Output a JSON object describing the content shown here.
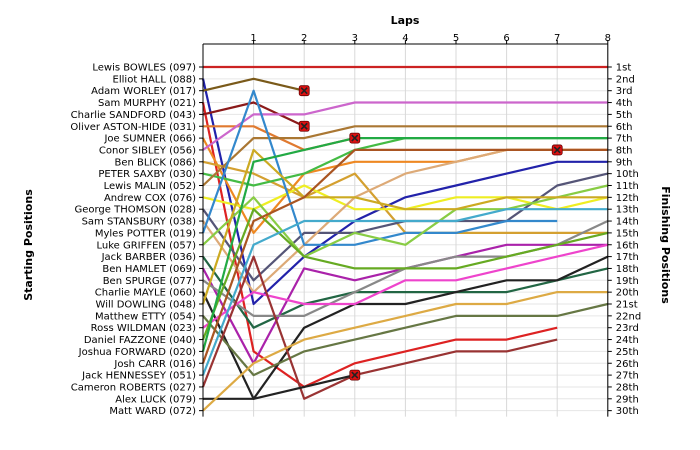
{
  "chart_data": {
    "type": "line",
    "xlabel": "Laps",
    "ylabel_left": "Starting Positions",
    "ylabel_right": "Finishing Positions",
    "x_ticks": [
      1,
      2,
      3,
      4,
      5,
      6,
      7,
      8
    ],
    "y_range": [
      1,
      30
    ],
    "finishing_labels": [
      "1st",
      "2nd",
      "3rd",
      "4th",
      "5th",
      "6th",
      "7th",
      "8th",
      "9th",
      "10th",
      "11th",
      "12th",
      "13th",
      "14th",
      "15th",
      "16th",
      "17th",
      "18th",
      "19th",
      "20th",
      "21st",
      "22nd",
      "23rd",
      "24th",
      "25th",
      "26th",
      "27th",
      "28th",
      "29th",
      "30th"
    ],
    "grid": true,
    "series": [
      {
        "name": "Lewis BOWLES (097)",
        "color": "#cc2222",
        "positions": [
          1,
          1,
          1,
          1,
          1,
          1,
          1,
          1,
          1
        ],
        "retired": false
      },
      {
        "name": "Elliot HALL (088)",
        "color": "#2222aa",
        "positions": [
          2,
          21,
          17,
          14,
          12,
          11,
          10,
          9,
          9
        ],
        "retired": false
      },
      {
        "name": "Adam WORLEY (017)",
        "color": "#7a5a1a",
        "positions": [
          3,
          2,
          3
        ],
        "retired": true
      },
      {
        "name": "Sam MURPHY (021)",
        "color": "#dd2222",
        "positions": [
          4,
          25,
          28,
          26,
          25,
          24,
          24,
          23
        ],
        "retired": false
      },
      {
        "name": "Charlie SANDFORD (043)",
        "color": "#8b1a1a",
        "positions": [
          5,
          4,
          6
        ],
        "retired": true
      },
      {
        "name": "Oliver ASTON-HIDE (031)",
        "color": "#e07a30",
        "positions": [
          6,
          6,
          8,
          7
        ],
        "retired": true
      },
      {
        "name": "Joe SUMNER (066)",
        "color": "#ee8822",
        "positions": [
          7,
          15,
          10,
          9,
          9,
          9,
          8,
          8,
          8
        ],
        "retired": false
      },
      {
        "name": "Conor SIBLEY (056)",
        "color": "#cc66cc",
        "positions": [
          8,
          5,
          5,
          4,
          4,
          4,
          4,
          4,
          4
        ],
        "retired": false
      },
      {
        "name": "Ben BLICK (086)",
        "color": "#d4a030",
        "positions": [
          9,
          10,
          12,
          10,
          15,
          15,
          15,
          15,
          15
        ],
        "retired": false
      },
      {
        "name": "PETER SAXBY (030)",
        "color": "#44bb44",
        "positions": [
          10,
          11,
          10,
          8,
          7,
          7,
          7,
          7,
          7
        ],
        "retired": false
      },
      {
        "name": "Lewis MALIN (052)",
        "color": "#aa7733",
        "positions": [
          11,
          7,
          7,
          6,
          6,
          6,
          6,
          6,
          6
        ],
        "retired": false
      },
      {
        "name": "Andrew COX (076)",
        "color": "#eeee22",
        "positions": [
          12,
          13,
          11,
          13,
          13,
          12,
          12,
          13,
          12
        ],
        "retired": false
      },
      {
        "name": "George THOMSON (028)",
        "color": "#555577",
        "positions": [
          13,
          19,
          15,
          15,
          14,
          14,
          14,
          11,
          10
        ],
        "retired": false
      },
      {
        "name": "Sam STANSBURY (038)",
        "color": "#ddaa77",
        "positions": [
          14,
          20,
          16,
          12,
          10,
          9,
          8,
          8
        ],
        "retired": true
      },
      {
        "name": "Myles POTTER (019)",
        "color": "#3388cc",
        "positions": [
          15,
          3,
          16,
          16,
          15,
          15,
          14,
          14
        ],
        "retired": false
      },
      {
        "name": "Luke GRIFFEN (057)",
        "color": "#88cc44",
        "positions": [
          16,
          12,
          17,
          15,
          16,
          13,
          13,
          12,
          11
        ],
        "retired": false
      },
      {
        "name": "Jack BARBER (036)",
        "color": "#226644",
        "positions": [
          17,
          23,
          21,
          20,
          20,
          20,
          20,
          19,
          18
        ],
        "retired": false
      },
      {
        "name": "Ben HAMLET (069)",
        "color": "#aa22aa",
        "positions": [
          18,
          26,
          18,
          19,
          18,
          17,
          16,
          16,
          16
        ],
        "retired": false
      },
      {
        "name": "Ben SPURGE (077)",
        "color": "#888888",
        "positions": [
          19,
          22,
          22,
          20,
          18,
          17,
          17,
          16,
          14
        ],
        "retired": false
      },
      {
        "name": "Charlie MAYLE (060)",
        "color": "#222222",
        "positions": [
          20,
          29,
          23,
          21,
          21,
          20,
          19,
          19,
          17
        ],
        "retired": false
      },
      {
        "name": "Will DOWLING (048)",
        "color": "#ccaa22",
        "positions": [
          21,
          8,
          12,
          12,
          13,
          13,
          12,
          12,
          12
        ],
        "retired": false
      },
      {
        "name": "Matthew ETTY (054)",
        "color": "#667744",
        "positions": [
          22,
          27,
          25,
          24,
          23,
          22,
          22,
          22,
          21
        ],
        "retired": false
      },
      {
        "name": "Ross WILDMAN (023)",
        "color": "#ee44cc",
        "positions": [
          23,
          20,
          21,
          21,
          19,
          19,
          18,
          17,
          16
        ],
        "retired": false
      },
      {
        "name": "Daniel FAZZONE (040)",
        "color": "#66aa22",
        "positions": [
          24,
          13,
          17,
          18,
          18,
          18,
          17,
          16,
          15
        ],
        "retired": false
      },
      {
        "name": "Joshua FORWARD (020)",
        "color": "#22aa44",
        "positions": [
          25,
          9,
          8,
          7,
          7,
          7,
          7,
          7,
          7
        ],
        "retired": false
      },
      {
        "name": "Josh CARR (016)",
        "color": "#aa5522",
        "positions": [
          26,
          14,
          12,
          8,
          8,
          8,
          8,
          8,
          8
        ],
        "retired": false
      },
      {
        "name": "Jack HENNESSEY (051)",
        "color": "#44aacc",
        "positions": [
          27,
          16,
          14,
          14,
          14,
          14,
          13,
          13,
          13
        ],
        "retired": false
      },
      {
        "name": "Cameron ROBERTS (027)",
        "color": "#993333",
        "positions": [
          28,
          17,
          29,
          27,
          26,
          25,
          25,
          24
        ],
        "retired": false
      },
      {
        "name": "Alex LUCK (079)",
        "color": "#222222",
        "positions": [
          29,
          29,
          28,
          27
        ],
        "retired": true
      },
      {
        "name": "Matt WARD (072)",
        "color": "#ddaa44",
        "positions": [
          30,
          26,
          24,
          23,
          22,
          21,
          21,
          20,
          20
        ],
        "retired": false
      }
    ]
  }
}
